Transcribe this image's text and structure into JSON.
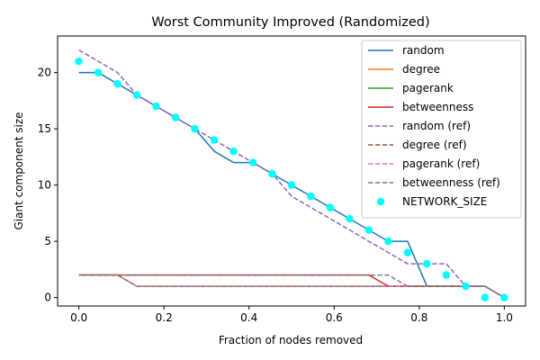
{
  "chart_data": {
    "type": "line",
    "title": "Worst Community Improved (Randomized)",
    "xlabel": "Fraction of nodes removed",
    "ylabel": "Giant component size",
    "xlim": [
      -0.05,
      1.05
    ],
    "ylim": [
      -0.75,
      23.25
    ],
    "xticks": [
      0.0,
      0.2,
      0.4,
      0.6,
      0.8,
      1.0
    ],
    "xtick_labels": [
      "0.0",
      "0.2",
      "0.4",
      "0.6",
      "0.8",
      "1.0"
    ],
    "yticks": [
      0,
      5,
      10,
      15,
      20
    ],
    "ytick_labels": [
      "0",
      "5",
      "10",
      "15",
      "20"
    ],
    "grid": false,
    "legend_position": "top-right",
    "series": [
      {
        "name": "random",
        "color": "#1f77b4",
        "style": "solid",
        "kind": "line",
        "x": [
          0,
          0.0455,
          0.0909,
          0.1364,
          0.1818,
          0.2273,
          0.2727,
          0.3182,
          0.3636,
          0.4091,
          0.4545,
          0.5,
          0.5455,
          0.5909,
          0.6364,
          0.6818,
          0.7273,
          0.7727,
          0.8182,
          0.8636,
          0.9091,
          0.9545,
          1.0
        ],
        "y": [
          20,
          20,
          19,
          18,
          17,
          16,
          15,
          13,
          12,
          12,
          11,
          10,
          9,
          8,
          7,
          6,
          5,
          5,
          1,
          1,
          1,
          1,
          0
        ]
      },
      {
        "name": "degree",
        "color": "#ff7f0e",
        "style": "solid",
        "kind": "line",
        "x": [
          0,
          0.0455,
          0.0909,
          0.1364,
          0.1818,
          0.2273,
          0.2727,
          0.3182,
          0.3636,
          0.4091,
          0.4545,
          0.5,
          0.5455,
          0.5909,
          0.6364,
          0.6818,
          0.7273,
          0.7727,
          0.8182,
          0.8636,
          0.9091,
          0.9545,
          1.0
        ],
        "y": [
          2,
          2,
          2,
          1,
          1,
          1,
          1,
          1,
          1,
          1,
          1,
          1,
          1,
          1,
          1,
          1,
          1,
          1,
          1,
          1,
          1,
          1,
          0
        ]
      },
      {
        "name": "pagerank",
        "color": "#2ca02c",
        "style": "solid",
        "kind": "line",
        "x": [
          0,
          0.0455,
          0.0909,
          0.1364,
          0.1818,
          0.2273,
          0.2727,
          0.3182,
          0.3636,
          0.4091,
          0.4545,
          0.5,
          0.5455,
          0.5909,
          0.6364,
          0.6818,
          0.7273,
          0.7727,
          0.8182,
          0.8636,
          0.9091,
          0.9545,
          1.0
        ],
        "y": [
          2,
          2,
          2,
          1,
          1,
          1,
          1,
          1,
          1,
          1,
          1,
          1,
          1,
          1,
          1,
          1,
          1,
          1,
          1,
          1,
          1,
          1,
          0
        ]
      },
      {
        "name": "betweenness",
        "color": "#d62728",
        "style": "solid",
        "kind": "line",
        "x": [
          0,
          0.0455,
          0.0909,
          0.1364,
          0.1818,
          0.2273,
          0.2727,
          0.3182,
          0.3636,
          0.4091,
          0.4545,
          0.5,
          0.5455,
          0.5909,
          0.6364,
          0.6818,
          0.7273,
          0.7727,
          0.8182,
          0.8636,
          0.9091,
          0.9545,
          1.0
        ],
        "y": [
          2,
          2,
          2,
          2,
          2,
          2,
          2,
          2,
          2,
          2,
          2,
          2,
          2,
          2,
          2,
          2,
          1,
          1,
          1,
          1,
          1,
          1,
          0
        ]
      },
      {
        "name": "random (ref)",
        "color": "#9467bd",
        "style": "dashed",
        "kind": "line",
        "x": [
          0,
          0.0455,
          0.0909,
          0.1364,
          0.1818,
          0.2273,
          0.2727,
          0.3182,
          0.3636,
          0.4091,
          0.4545,
          0.5,
          0.5455,
          0.5909,
          0.6364,
          0.6818,
          0.7273,
          0.7727,
          0.8182,
          0.8636,
          0.9091,
          0.9545,
          1.0
        ],
        "y": [
          22,
          21,
          20,
          18,
          17,
          16,
          15,
          14,
          13,
          12,
          11,
          9,
          8,
          7,
          6,
          5,
          4,
          3,
          3,
          3,
          1,
          1,
          0
        ]
      },
      {
        "name": "degree (ref)",
        "color": "#8c564b",
        "style": "dashed",
        "kind": "line",
        "x": [
          0,
          0.0455,
          0.0909,
          0.1364,
          0.1818,
          0.2273,
          0.2727,
          0.3182,
          0.3636,
          0.4091,
          0.4545,
          0.5,
          0.5455,
          0.5909,
          0.6364,
          0.6818,
          0.7273,
          0.7727,
          0.8182,
          0.8636,
          0.9091,
          0.9545,
          1.0
        ],
        "y": [
          2,
          2,
          2,
          1,
          1,
          1,
          1,
          1,
          1,
          1,
          1,
          1,
          1,
          1,
          1,
          1,
          1,
          1,
          1,
          1,
          1,
          1,
          0
        ]
      },
      {
        "name": "pagerank (ref)",
        "color": "#e377c2",
        "style": "dashed",
        "kind": "line",
        "x": [
          0,
          0.0455,
          0.0909,
          0.1364,
          0.1818,
          0.2273,
          0.2727,
          0.3182,
          0.3636,
          0.4091,
          0.4545,
          0.5,
          0.5455,
          0.5909,
          0.6364,
          0.6818,
          0.7273,
          0.7727,
          0.8182,
          0.8636,
          0.9091,
          0.9545,
          1.0
        ],
        "y": [
          2,
          2,
          2,
          1,
          1,
          1,
          1,
          1,
          1,
          1,
          1,
          1,
          1,
          1,
          1,
          1,
          1,
          1,
          1,
          1,
          1,
          1,
          0
        ]
      },
      {
        "name": "betweenness (ref)",
        "color": "#7f7f7f",
        "style": "dashed",
        "kind": "line",
        "x": [
          0,
          0.0455,
          0.0909,
          0.1364,
          0.1818,
          0.2273,
          0.2727,
          0.3182,
          0.3636,
          0.4091,
          0.4545,
          0.5,
          0.5455,
          0.5909,
          0.6364,
          0.6818,
          0.7273,
          0.7727,
          0.8182,
          0.8636,
          0.9091,
          0.9545,
          1.0
        ],
        "y": [
          2,
          2,
          2,
          2,
          2,
          2,
          2,
          2,
          2,
          2,
          2,
          2,
          2,
          2,
          2,
          2,
          2,
          1,
          1,
          1,
          1,
          1,
          0
        ]
      },
      {
        "name": "NETWORK_SIZE",
        "color": "#00ffff",
        "style": "none",
        "kind": "scatter",
        "x": [
          0,
          0.0455,
          0.0909,
          0.1364,
          0.1818,
          0.2273,
          0.2727,
          0.3182,
          0.3636,
          0.4091,
          0.4545,
          0.5,
          0.5455,
          0.5909,
          0.6364,
          0.6818,
          0.7273,
          0.7727,
          0.8182,
          0.8636,
          0.9091,
          0.9545,
          1.0
        ],
        "y": [
          21,
          20,
          19,
          18,
          17,
          16,
          15,
          14,
          13,
          12,
          11,
          10,
          9,
          8,
          7,
          6,
          5,
          4,
          3,
          2,
          1,
          0,
          0
        ]
      }
    ]
  }
}
